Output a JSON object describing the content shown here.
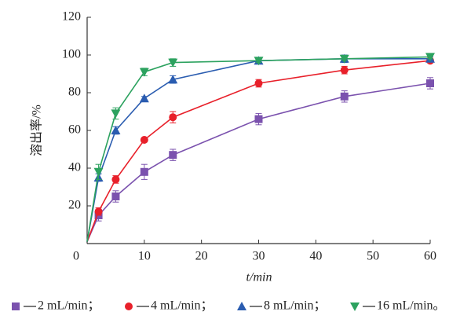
{
  "chart_data": {
    "type": "line",
    "xlabel": "t/min",
    "ylabel": "溶出率/%",
    "x": [
      0,
      2,
      5,
      10,
      15,
      30,
      45,
      60
    ],
    "xlim": [
      0,
      60
    ],
    "xticks": [
      0,
      10,
      20,
      30,
      40,
      50,
      60
    ],
    "ylim": [
      0,
      120
    ],
    "yticks": [
      20,
      40,
      60,
      80,
      100,
      120
    ],
    "legend": "bottom",
    "series": [
      {
        "name": "2 mL/min；",
        "color": "#7b52ae",
        "marker": "square",
        "values": [
          1,
          15,
          25,
          38,
          47,
          66,
          78,
          85
        ],
        "errors": [
          0,
          3,
          3,
          4,
          3,
          3,
          3,
          3
        ]
      },
      {
        "name": "4 mL/min；",
        "color": "#e8202a",
        "marker": "circle",
        "values": [
          1,
          17,
          34,
          55,
          67,
          85,
          92,
          97
        ],
        "errors": [
          0,
          2,
          2,
          1,
          3,
          2,
          2,
          1
        ]
      },
      {
        "name": "8 mL/min；",
        "color": "#2a5cb0",
        "marker": "triangle",
        "values": [
          1,
          35,
          60,
          77,
          87,
          97,
          98,
          98
        ],
        "errors": [
          0,
          2,
          2,
          1,
          2,
          1,
          2,
          1
        ]
      },
      {
        "name": "16 mL/min。",
        "color": "#2ca25f",
        "marker": "triangle-down",
        "values": [
          1,
          38,
          69,
          91,
          96,
          97,
          98,
          99
        ],
        "errors": [
          0,
          4,
          3,
          2,
          2,
          1,
          1,
          1
        ]
      }
    ]
  }
}
